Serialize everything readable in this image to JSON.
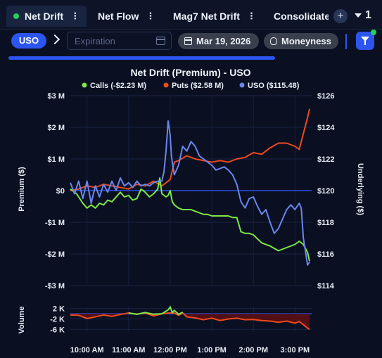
{
  "tabs": [
    {
      "label": "Net Drift",
      "active": true
    },
    {
      "label": "Net Flow",
      "active": false
    },
    {
      "label": "Mag7 Net Drift",
      "active": false
    },
    {
      "label": "Consolidate",
      "active": false
    }
  ],
  "tab_overflow_count": "1",
  "filters": {
    "ticker": "USO",
    "expiration_placeholder": "Expiration",
    "date": "Mar 19, 2026",
    "moneyness": "Moneyness"
  },
  "colors": {
    "accent": "#2c55f0",
    "calls": "#7ee646",
    "puts": "#ef4a1c",
    "uso": "#6a86ee",
    "zero_line": "#2f4fe0",
    "volume_fill": "#5a0f14"
  },
  "chart_data": {
    "type": "line",
    "title": "Net Drift (Premium) - USO",
    "legend": [
      {
        "name": "Calls (-$2.23 M)",
        "color": "#7ee646"
      },
      {
        "name": "Puts ($2.58 M)",
        "color": "#ef4a1c"
      },
      {
        "name": "USO ($115.48)",
        "color": "#6a86ee"
      }
    ],
    "ylabel_left": "Premium ($)",
    "ylabel_right": "Underlying ($)",
    "volume_label": "Volume",
    "y_left_ticks": [
      "$3 M",
      "$2 M",
      "$1 M",
      "$0",
      "-$1 M",
      "-$2 M",
      "-$3 M"
    ],
    "y_left_range": [
      -3,
      3
    ],
    "y_right_ticks": [
      "$126",
      "$124",
      "$122",
      "$120",
      "$118",
      "$116",
      "$114"
    ],
    "y_right_range": [
      114,
      126
    ],
    "volume_ticks": [
      "2 K",
      "-2 K",
      "-6 K"
    ],
    "volume_range": [
      -7,
      3
    ],
    "x_ticks": [
      "10:00 AM",
      "11:00 AM",
      "12:00 PM",
      "1:00 PM",
      "2:00 PM",
      "3:00 PM"
    ],
    "x_tick_times": [
      10.0,
      11.0,
      12.0,
      13.0,
      14.0,
      15.0
    ],
    "x_range": [
      9.6,
      15.4
    ],
    "series": [
      {
        "name": "Calls",
        "axis": "left",
        "x": [
          9.6,
          9.75,
          9.9,
          10.0,
          10.1,
          10.2,
          10.3,
          10.4,
          10.5,
          10.6,
          10.7,
          10.8,
          10.9,
          11.0,
          11.1,
          11.2,
          11.3,
          11.4,
          11.5,
          11.6,
          11.7,
          11.75,
          11.8,
          11.9,
          11.95,
          12.0,
          12.05,
          12.1,
          12.2,
          12.3,
          12.4,
          12.5,
          12.6,
          12.7,
          12.8,
          12.9,
          13.0,
          13.2,
          13.4,
          13.5,
          13.6,
          13.7,
          13.8,
          13.9,
          14.0,
          14.2,
          14.4,
          14.6,
          14.8,
          15.0,
          15.1,
          15.2,
          15.3,
          15.35
        ],
        "values": [
          0.05,
          -0.1,
          -0.4,
          -0.55,
          -0.45,
          -0.55,
          -0.4,
          -0.45,
          -0.3,
          -0.35,
          -0.2,
          -0.05,
          -0.2,
          -0.15,
          -0.3,
          -0.25,
          0.05,
          -0.05,
          -0.2,
          -0.1,
          0.05,
          0.4,
          -0.1,
          -0.2,
          -0.15,
          0.0,
          -0.35,
          -0.45,
          -0.55,
          -0.6,
          -0.6,
          -0.6,
          -0.65,
          -0.7,
          -0.75,
          -0.75,
          -0.8,
          -0.8,
          -0.8,
          -0.85,
          -0.85,
          -1.3,
          -1.35,
          -1.35,
          -1.4,
          -1.65,
          -1.75,
          -1.9,
          -1.8,
          -1.7,
          -1.6,
          -1.7,
          -1.95,
          -2.23
        ]
      },
      {
        "name": "Puts",
        "axis": "left",
        "x": [
          9.6,
          9.8,
          10.0,
          10.2,
          10.4,
          10.6,
          10.8,
          11.0,
          11.2,
          11.4,
          11.6,
          11.8,
          12.0,
          12.1,
          12.2,
          12.4,
          12.6,
          12.8,
          13.0,
          13.2,
          13.4,
          13.6,
          13.8,
          14.0,
          14.2,
          14.4,
          14.6,
          14.8,
          15.0,
          15.1,
          15.2,
          15.3,
          15.35
        ],
        "values": [
          0.0,
          0.05,
          0.15,
          0.1,
          0.2,
          0.15,
          0.1,
          0.05,
          0.2,
          0.15,
          0.3,
          0.15,
          0.35,
          0.9,
          0.95,
          1.1,
          1.0,
          0.95,
          0.9,
          0.95,
          0.9,
          1.0,
          1.05,
          1.2,
          1.15,
          1.35,
          1.5,
          1.5,
          1.4,
          1.3,
          1.8,
          2.3,
          2.58
        ]
      },
      {
        "name": "USO",
        "axis": "right",
        "x": [
          9.6,
          9.7,
          9.8,
          9.9,
          10.0,
          10.1,
          10.2,
          10.3,
          10.4,
          10.5,
          10.6,
          10.7,
          10.8,
          10.9,
          11.0,
          11.1,
          11.2,
          11.3,
          11.4,
          11.5,
          11.6,
          11.7,
          11.8,
          11.85,
          11.9,
          11.95,
          12.0,
          12.03,
          12.06,
          12.1,
          12.2,
          12.3,
          12.4,
          12.5,
          12.6,
          12.7,
          12.8,
          12.9,
          13.0,
          13.1,
          13.2,
          13.3,
          13.4,
          13.5,
          13.6,
          13.7,
          13.8,
          13.9,
          14.0,
          14.1,
          14.2,
          14.3,
          14.4,
          14.5,
          14.6,
          14.7,
          14.8,
          14.9,
          15.0,
          15.1,
          15.15,
          15.2,
          15.25,
          15.3,
          15.35
        ],
        "values": [
          120.5,
          119.8,
          120.6,
          119.5,
          120.6,
          119.2,
          120.3,
          119.6,
          120.4,
          119.9,
          120.6,
          120.0,
          120.8,
          120.3,
          120.5,
          120.2,
          120.6,
          120.3,
          120.4,
          120.3,
          120.5,
          120.6,
          120.6,
          121.2,
          122.5,
          124.4,
          123.5,
          122.2,
          121.6,
          121.0,
          121.6,
          122.8,
          122.5,
          123.1,
          122.8,
          122.2,
          122.0,
          121.8,
          121.6,
          121.3,
          121.4,
          121.5,
          121.3,
          121.0,
          120.4,
          119.3,
          118.9,
          119.5,
          119.6,
          119.0,
          118.5,
          118.8,
          118.0,
          117.3,
          117.6,
          118.2,
          118.8,
          119.1,
          118.8,
          119.2,
          118.9,
          117.0,
          116.2,
          115.3,
          115.48
        ]
      }
    ],
    "volume": {
      "x": [
        9.6,
        9.8,
        10.0,
        10.2,
        10.4,
        10.6,
        10.8,
        11.0,
        11.2,
        11.4,
        11.6,
        11.8,
        11.95,
        12.0,
        12.05,
        12.1,
        12.2,
        12.3,
        12.4,
        12.6,
        12.8,
        13.0,
        13.2,
        13.4,
        13.6,
        13.8,
        14.0,
        14.2,
        14.4,
        14.6,
        14.8,
        15.0,
        15.1,
        15.2,
        15.3,
        15.35
      ],
      "values": [
        -0.5,
        -0.6,
        -1.8,
        -1.2,
        -0.5,
        -1.0,
        -0.3,
        0.3,
        -0.2,
        0.5,
        -0.8,
        0.0,
        1.5,
        2.6,
        0.5,
        1.3,
        -0.6,
        0.6,
        -1.2,
        -1.6,
        -2.3,
        -1.7,
        -2.6,
        -2.0,
        -1.7,
        -2.3,
        -2.2,
        -2.6,
        -2.8,
        -3.3,
        -2.8,
        -3.6,
        -3.0,
        -4.2,
        -5.5,
        -6.0
      ]
    }
  }
}
